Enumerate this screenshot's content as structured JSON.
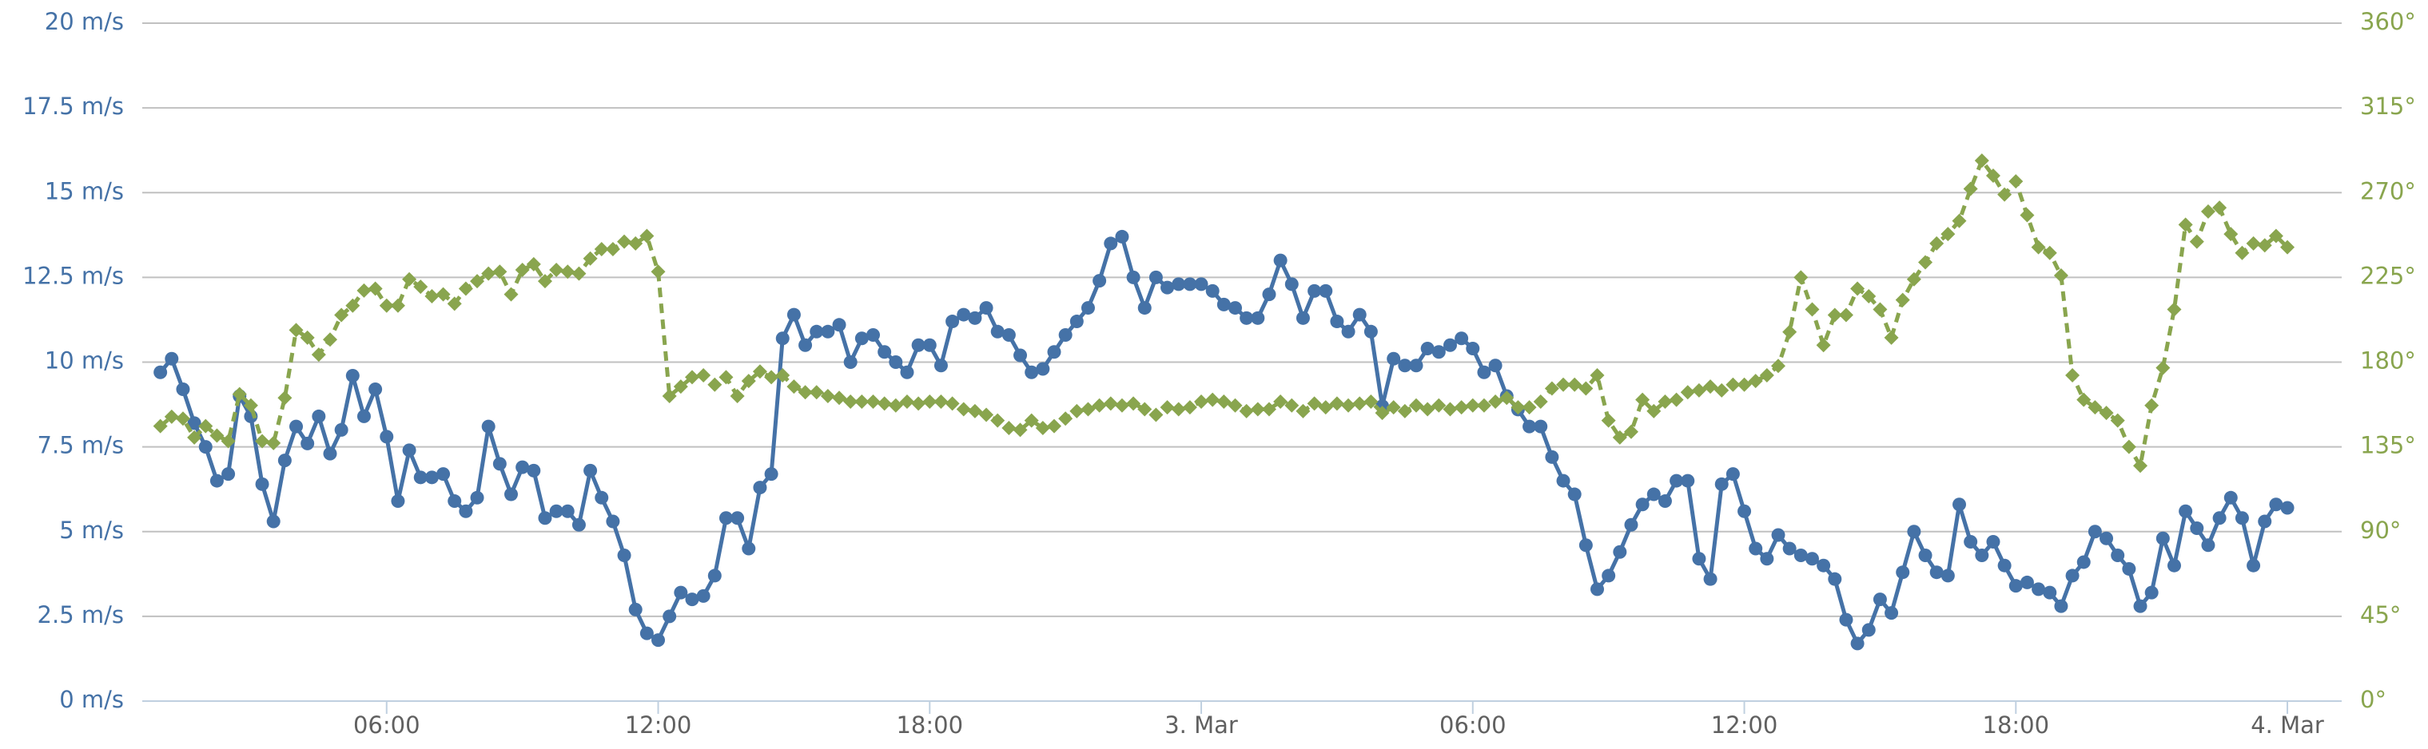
{
  "chart_data": {
    "type": "line",
    "xlim": [
      0.6,
      49.2
    ],
    "xticks": [
      {
        "value": 6,
        "label": "06:00"
      },
      {
        "value": 12,
        "label": "12:00"
      },
      {
        "value": 18,
        "label": "18:00"
      },
      {
        "value": 24,
        "label": "3. Mar"
      },
      {
        "value": 30,
        "label": "06:00"
      },
      {
        "value": 36,
        "label": "12:00"
      },
      {
        "value": 42,
        "label": "18:00"
      },
      {
        "value": 48,
        "label": "4. Mar"
      }
    ],
    "ylim": [
      0,
      20
    ],
    "yticks": [
      {
        "value": 0,
        "label": "0 m/s"
      },
      {
        "value": 2.5,
        "label": "2.5 m/s"
      },
      {
        "value": 5,
        "label": "5 m/s"
      },
      {
        "value": 7.5,
        "label": "7.5 m/s"
      },
      {
        "value": 10,
        "label": "10 m/s"
      },
      {
        "value": 12.5,
        "label": "12.5 m/s"
      },
      {
        "value": 15,
        "label": "15 m/s"
      },
      {
        "value": 17.5,
        "label": "17.5 m/s"
      },
      {
        "value": 20,
        "label": "20 m/s"
      }
    ],
    "y2lim": [
      0,
      360
    ],
    "y2ticks": [
      {
        "value": 0,
        "label": "0°"
      },
      {
        "value": 45,
        "label": "45°"
      },
      {
        "value": 90,
        "label": "90°"
      },
      {
        "value": 135,
        "label": "135°"
      },
      {
        "value": 180,
        "label": "180°"
      },
      {
        "value": 225,
        "label": "225°"
      },
      {
        "value": 270,
        "label": "270°"
      },
      {
        "value": 315,
        "label": "315°"
      },
      {
        "value": 360,
        "label": "360°"
      }
    ],
    "grid": true,
    "x": [
      1,
      1.25,
      1.5,
      1.75,
      2,
      2.25,
      2.5,
      2.75,
      3,
      3.25,
      3.5,
      3.75,
      4,
      4.25,
      4.5,
      4.75,
      5,
      5.25,
      5.5,
      5.75,
      6,
      6.25,
      6.5,
      6.75,
      7,
      7.25,
      7.5,
      7.75,
      8,
      8.25,
      8.5,
      8.75,
      9,
      9.25,
      9.5,
      9.75,
      10,
      10.25,
      10.5,
      10.75,
      11,
      11.25,
      11.5,
      11.75,
      12,
      12.25,
      12.5,
      12.75,
      13,
      13.25,
      13.5,
      13.75,
      14,
      14.25,
      14.5,
      14.75,
      15,
      15.25,
      15.5,
      15.75,
      16,
      16.25,
      16.5,
      16.75,
      17,
      17.25,
      17.5,
      17.75,
      18,
      18.25,
      18.5,
      18.75,
      19,
      19.25,
      19.5,
      19.75,
      20,
      20.25,
      20.5,
      20.75,
      21,
      21.25,
      21.5,
      21.75,
      22,
      22.25,
      22.5,
      22.75,
      23,
      23.25,
      23.5,
      23.75,
      24,
      24.25,
      24.5,
      24.75,
      25,
      25.25,
      25.5,
      25.75,
      26,
      26.25,
      26.5,
      26.75,
      27,
      27.25,
      27.5,
      27.75,
      28,
      28.25,
      28.5,
      28.75,
      29,
      29.25,
      29.5,
      29.75,
      30,
      30.25,
      30.5,
      30.75,
      31,
      31.25,
      31.5,
      31.75,
      32,
      32.25,
      32.5,
      32.75,
      33,
      33.25,
      33.5,
      33.75,
      34,
      34.25,
      34.5,
      34.75,
      35,
      35.25,
      35.5,
      35.75,
      36,
      36.25,
      36.5,
      36.75,
      37,
      37.25,
      37.5,
      37.75,
      38,
      38.25,
      38.5,
      38.75,
      39,
      39.25,
      39.5,
      39.75,
      40,
      40.25,
      40.5,
      40.75,
      41,
      41.25,
      41.5,
      41.75,
      42,
      42.25,
      42.5,
      42.75,
      43,
      43.25,
      43.5,
      43.75,
      44,
      44.25,
      44.5,
      44.75,
      45,
      45.25,
      45.5,
      45.75,
      46,
      46.25,
      46.5,
      46.75,
      47,
      47.25,
      47.5,
      47.75,
      48
    ],
    "series": [
      {
        "color": "#4572a7",
        "marker": "circle",
        "dashed": false,
        "axis": "y",
        "values": [
          9.7,
          10.1,
          9.2,
          8.2,
          7.5,
          6.5,
          6.7,
          9.0,
          8.4,
          6.4,
          5.3,
          7.1,
          8.1,
          7.6,
          8.4,
          7.3,
          8.0,
          9.6,
          8.4,
          9.2,
          7.8,
          5.9,
          7.4,
          6.6,
          6.6,
          6.7,
          5.9,
          5.6,
          6.0,
          8.1,
          7.0,
          6.1,
          6.9,
          6.8,
          5.4,
          5.6,
          5.6,
          5.2,
          6.8,
          6.0,
          5.3,
          4.3,
          2.7,
          2.0,
          1.8,
          2.5,
          3.2,
          3.0,
          3.1,
          3.7,
          5.4,
          5.4,
          4.5,
          6.3,
          6.7,
          10.7,
          11.4,
          10.5,
          10.9,
          10.9,
          11.1,
          10.0,
          10.7,
          10.8,
          10.3,
          10.0,
          9.7,
          10.5,
          10.5,
          9.9,
          11.2,
          11.4,
          11.3,
          11.6,
          10.9,
          10.8,
          10.2,
          9.7,
          9.8,
          10.3,
          10.8,
          11.2,
          11.6,
          12.4,
          13.5,
          13.7,
          12.5,
          11.6,
          12.5,
          12.2,
          12.3,
          12.3,
          12.3,
          12.1,
          11.7,
          11.6,
          11.3,
          11.3,
          12.0,
          13.0,
          12.3,
          11.3,
          12.1,
          12.1,
          11.2,
          10.9,
          11.4,
          10.9,
          8.7,
          10.1,
          9.9,
          9.9,
          10.4,
          10.3,
          10.5,
          10.7,
          10.4,
          9.7,
          9.9,
          9.0,
          8.6,
          8.1,
          8.1,
          7.2,
          6.5,
          6.1,
          4.6,
          3.3,
          3.7,
          4.4,
          5.2,
          5.8,
          6.1,
          5.9,
          6.5,
          6.5,
          4.2,
          3.6,
          6.4,
          6.7,
          5.6,
          4.5,
          4.2,
          4.9,
          4.5,
          4.3,
          4.2,
          4.0,
          3.6,
          2.4,
          1.7,
          2.1,
          3.0,
          2.6,
          3.8,
          5.0,
          4.3,
          3.8,
          3.7,
          5.8,
          4.7,
          4.3,
          4.7,
          4.0,
          3.4,
          3.5,
          3.3,
          3.2,
          2.8,
          3.7,
          4.1,
          5.0,
          4.8,
          4.3,
          3.9,
          2.8,
          3.2,
          4.8,
          4.0,
          5.6,
          5.1,
          4.6,
          5.4,
          6.0,
          5.4,
          4.0,
          5.3,
          5.8,
          5.7
        ]
      },
      {
        "color": "#89a54e",
        "marker": "diamond",
        "dashed": true,
        "axis": "y2",
        "values": [
          146,
          151,
          150,
          140,
          146,
          141,
          138,
          163,
          157,
          138,
          137,
          161,
          197,
          193,
          184,
          192,
          205,
          210,
          218,
          219,
          210,
          210,
          224,
          220,
          215,
          216,
          211,
          219,
          223,
          227,
          228,
          216,
          229,
          232,
          223,
          229,
          228,
          227,
          235,
          240,
          240,
          244,
          243,
          247,
          228,
          162,
          167,
          172,
          173,
          168,
          172,
          162,
          170,
          175,
          172,
          173,
          167,
          164,
          164,
          162,
          161,
          159,
          159,
          159,
          158,
          157,
          159,
          158,
          159,
          159,
          158,
          155,
          154,
          152,
          149,
          145,
          144,
          149,
          145,
          146,
          150,
          154,
          155,
          157,
          158,
          157,
          158,
          155,
          152,
          156,
          155,
          156,
          159,
          160,
          159,
          157,
          154,
          155,
          155,
          159,
          157,
          154,
          158,
          156,
          158,
          157,
          158,
          159,
          153,
          156,
          154,
          157,
          155,
          157,
          155,
          156,
          157,
          157,
          159,
          161,
          156,
          156,
          159,
          166,
          168,
          168,
          166,
          173,
          149,
          140,
          143,
          160,
          154,
          159,
          160,
          164,
          165,
          167,
          165,
          168,
          168,
          170,
          173,
          178,
          196,
          225,
          208,
          189,
          205,
          205,
          219,
          215,
          208,
          193,
          213,
          224,
          233,
          243,
          248,
          255,
          272,
          287,
          279,
          269,
          276,
          258,
          241,
          238,
          226,
          173,
          160,
          156,
          153,
          149,
          135,
          125,
          157,
          177,
          208,
          253,
          244,
          260,
          262,
          248,
          238,
          243,
          242,
          247,
          241
        ]
      }
    ]
  }
}
